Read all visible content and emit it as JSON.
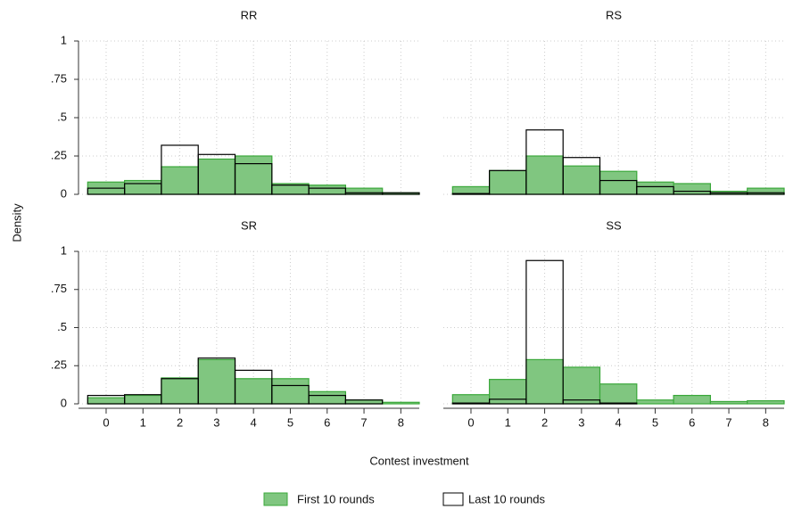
{
  "shared": {
    "ylabel": "Density",
    "xlabel": "Contest investment"
  },
  "chart_data": [
    {
      "type": "histogram",
      "title": "RR",
      "bins": [
        -0.5,
        0.5,
        1.5,
        2.5,
        3.5,
        4.5,
        5.5,
        6.5,
        7.5,
        8.5
      ],
      "xlim": [
        -0.75,
        8.5
      ],
      "ylim": [
        0,
        1
      ],
      "yticks": [
        0,
        {
          "value": 0.25,
          "label": ".25"
        },
        {
          "value": 0.5,
          "label": ".5"
        },
        {
          "value": 0.75,
          "label": ".75"
        },
        1
      ],
      "grid": true,
      "series": [
        {
          "name": "First 10 rounds",
          "color": "#80c680",
          "edge": "#3aa83a",
          "values": [
            0.08,
            0.09,
            0.18,
            0.23,
            0.25,
            0.07,
            0.06,
            0.04,
            0.01
          ]
        },
        {
          "name": "Last 10 rounds",
          "color": "none",
          "edge": "#000000",
          "values": [
            0.04,
            0.07,
            0.32,
            0.26,
            0.2,
            0.06,
            0.04,
            0.01,
            0.01
          ]
        }
      ]
    },
    {
      "type": "histogram",
      "title": "RS",
      "bins": [
        -0.5,
        0.5,
        1.5,
        2.5,
        3.5,
        4.5,
        5.5,
        6.5,
        7.5,
        8.5
      ],
      "xlim": [
        -0.75,
        8.5
      ],
      "ylim": [
        0,
        1
      ],
      "grid": true,
      "series": [
        {
          "name": "First 10 rounds",
          "color": "#80c680",
          "edge": "#3aa83a",
          "values": [
            0.05,
            0.155,
            0.25,
            0.185,
            0.15,
            0.08,
            0.07,
            0.02,
            0.04
          ]
        },
        {
          "name": "Last 10 rounds",
          "color": "none",
          "edge": "#000000",
          "values": [
            0.005,
            0.155,
            0.42,
            0.24,
            0.09,
            0.05,
            0.02,
            0.01,
            0.01
          ]
        }
      ]
    },
    {
      "type": "histogram",
      "title": "SR",
      "bins": [
        -0.5,
        0.5,
        1.5,
        2.5,
        3.5,
        4.5,
        5.5,
        6.5,
        7.5,
        8.5
      ],
      "xlim": [
        -0.75,
        8.5
      ],
      "ylim": [
        0,
        1
      ],
      "xticks": [
        0,
        1,
        2,
        3,
        4,
        5,
        6,
        7,
        8
      ],
      "yticks": [
        0,
        {
          "value": 0.25,
          "label": ".25"
        },
        {
          "value": 0.5,
          "label": ".5"
        },
        {
          "value": 0.75,
          "label": ".75"
        },
        1
      ],
      "grid": true,
      "series": [
        {
          "name": "First 10 rounds",
          "color": "#80c680",
          "edge": "#3aa83a",
          "values": [
            0.04,
            0.055,
            0.17,
            0.29,
            0.165,
            0.165,
            0.08,
            0.025,
            0.01
          ]
        },
        {
          "name": "Last 10 rounds",
          "color": "none",
          "edge": "#000000",
          "values": [
            0.055,
            0.06,
            0.165,
            0.3,
            0.22,
            0.12,
            0.055,
            0.025,
            0
          ]
        }
      ]
    },
    {
      "type": "histogram",
      "title": "SS",
      "bins": [
        -0.5,
        0.5,
        1.5,
        2.5,
        3.5,
        4.5,
        5.5,
        6.5,
        7.5,
        8.5
      ],
      "xlim": [
        -0.75,
        8.5
      ],
      "ylim": [
        0,
        1
      ],
      "xticks": [
        0,
        1,
        2,
        3,
        4,
        5,
        6,
        7,
        8
      ],
      "grid": true,
      "series": [
        {
          "name": "First 10 rounds",
          "color": "#80c680",
          "edge": "#3aa83a",
          "values": [
            0.06,
            0.16,
            0.29,
            0.24,
            0.13,
            0.025,
            0.055,
            0.015,
            0.02
          ]
        },
        {
          "name": "Last 10 rounds",
          "color": "none",
          "edge": "#000000",
          "values": [
            0.005,
            0.03,
            0.94,
            0.025,
            0.005,
            0,
            0,
            0,
            0
          ]
        }
      ]
    }
  ]
}
